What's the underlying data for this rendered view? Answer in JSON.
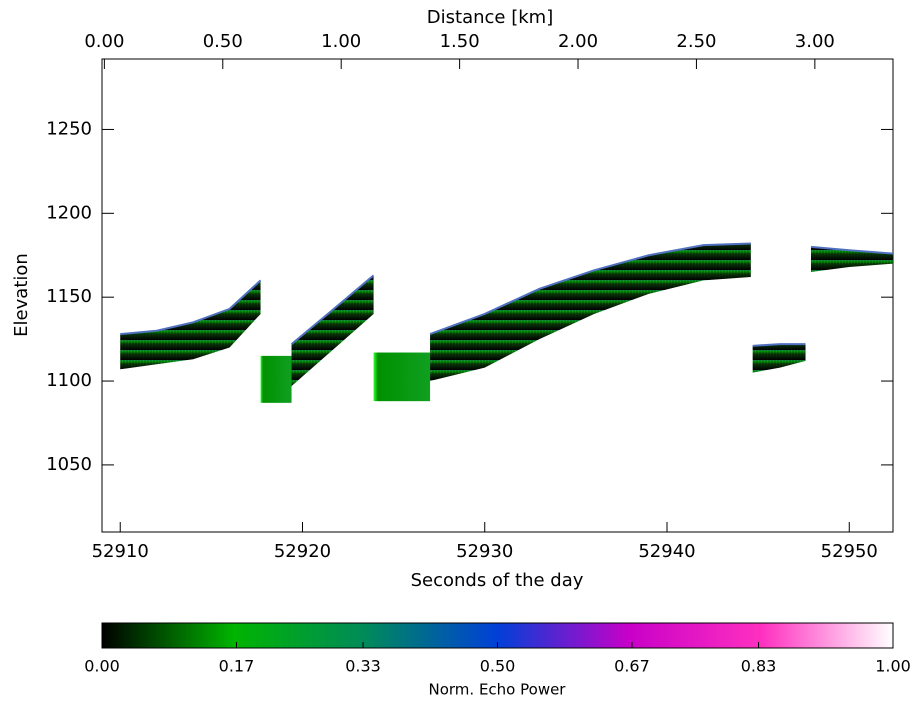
{
  "chart_data": {
    "type": "echogram",
    "x_label": "Seconds of the day",
    "y_label": "Elevation",
    "x2_label": "Distance [km]",
    "xlim": [
      52909,
      52952.4
    ],
    "xticks": [
      52910,
      52920,
      52930,
      52940,
      52950
    ],
    "ylim": [
      1010,
      1292
    ],
    "yticks": [
      1050,
      1100,
      1150,
      1200,
      1250
    ],
    "x2lim": [
      -0.01,
      3.33
    ],
    "x2ticks": [
      {
        "value": 0,
        "label": "0.00"
      },
      {
        "value": 0.5,
        "label": "0.50"
      },
      {
        "value": 1,
        "label": "1.00"
      },
      {
        "value": 1.5,
        "label": "1.50"
      },
      {
        "value": 2,
        "label": "2.00"
      },
      {
        "value": 2.5,
        "label": "2.50"
      },
      {
        "value": 3,
        "label": "3.00"
      }
    ],
    "series": [
      {
        "x": [
          52910,
          52912,
          52914,
          52916,
          52917.7
        ],
        "surface": [
          1128,
          1130,
          1135,
          1143,
          1160
        ],
        "bottom": [
          1107,
          1110,
          1113,
          1120,
          1140
        ]
      },
      {
        "x": [
          52919.4,
          52921.5,
          52923.9
        ],
        "surface": [
          1122,
          1141,
          1163
        ],
        "bottom": [
          1097,
          1117,
          1140
        ]
      },
      {
        "x": [
          52927,
          52930,
          52933,
          52936,
          52939,
          52942,
          52944.6
        ],
        "surface": [
          1128,
          1140,
          1155,
          1166,
          1175,
          1181,
          1182
        ],
        "bottom": [
          1100,
          1108,
          1125,
          1140,
          1152,
          1160,
          1162
        ]
      },
      {
        "x": [
          52944.7,
          52946.2,
          52947.6
        ],
        "surface": [
          1121,
          1122,
          1122
        ],
        "bottom": [
          1105,
          1108,
          1112
        ]
      },
      {
        "x": [
          52947.9,
          52950,
          52952.4
        ],
        "surface": [
          1180,
          1178,
          1176
        ],
        "bottom": [
          1165,
          1168,
          1170
        ]
      }
    ],
    "blocks": [
      {
        "x": [
          52917.7,
          52919.4
        ],
        "y": [
          1087,
          1115
        ]
      },
      {
        "x": [
          52923.9,
          52927
        ],
        "y": [
          1088,
          1117
        ]
      }
    ],
    "colorbar": {
      "label": "Norm. Echo Power",
      "clim": [
        0,
        1
      ],
      "colors": [
        "#000000",
        "#00b400",
        "#008a5a",
        "#0040d8",
        "#c800c8",
        "#ff30c0",
        "#ffffff"
      ],
      "ticks": [
        {
          "value": 0,
          "label": "0.00"
        },
        {
          "value": 0.17,
          "label": "0.17"
        },
        {
          "value": 0.33,
          "label": "0.33"
        },
        {
          "value": 0.5,
          "label": "0.50"
        },
        {
          "value": 0.67,
          "label": "0.67"
        },
        {
          "value": 0.83,
          "label": "0.83"
        },
        {
          "value": 1,
          "label": "1.00"
        }
      ]
    }
  }
}
